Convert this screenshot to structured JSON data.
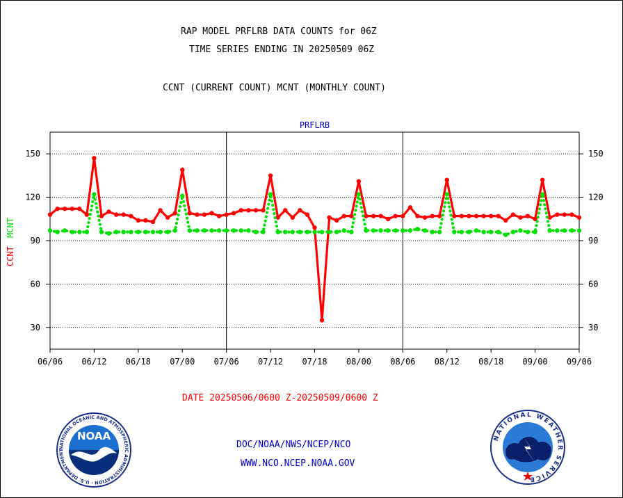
{
  "header": {
    "title_line1": "RAP MODEL PRFLRB DATA COUNTS for 06Z",
    "title_line2": "TIME SERIES ENDING IN 20250509 06Z",
    "subtitle": "CCNT (CURRENT COUNT) MCNT (MONTHLY COUNT)"
  },
  "footer": {
    "date_range": "DATE 20250506/0600 Z-20250509/0600 Z",
    "org": "DOC/NOAA/NWS/NCEP/NCO",
    "url": "WWW.NCO.NCEP.NOAA.GOV",
    "noaa_logo_text": "NOAA",
    "noaa_ring_text": "NATIONAL OCEANIC AND ATMOSPHERIC ADMINISTRATION · U.S. DEPARTMENT OF COMMERCE",
    "nws_ring_text": "NATIONAL WEATHER SERVICE"
  },
  "colors": {
    "ccnt": "#ff0000",
    "mcnt": "#00e000",
    "title_blue": "#0000cc"
  },
  "chart_data": {
    "type": "line",
    "title": "PRFLRB",
    "ylabel_ccnt": "CCNT",
    "ylabel_mcnt": "MCNT",
    "ylim": [
      15,
      165
    ],
    "yticks": [
      30,
      60,
      90,
      120,
      150
    ],
    "xticks": [
      "06/06",
      "06/12",
      "06/18",
      "07/00",
      "07/06",
      "07/12",
      "07/18",
      "08/00",
      "08/06",
      "08/12",
      "08/18",
      "09/00",
      "09/06"
    ],
    "x_index_range": [
      0,
      72
    ],
    "grid": true,
    "series": [
      {
        "name": "CCNT",
        "style": "solid",
        "x": [
          0,
          1,
          2,
          3,
          4,
          5,
          6,
          7,
          8,
          9,
          10,
          11,
          12,
          13,
          14,
          15,
          16,
          17,
          18,
          19,
          20,
          21,
          22,
          23,
          24,
          25,
          26,
          27,
          28,
          29,
          30,
          31,
          32,
          33,
          34,
          35,
          36,
          37,
          38,
          39,
          40,
          41,
          42,
          43,
          44,
          45,
          46,
          47,
          48,
          49,
          50,
          51,
          52,
          53,
          54,
          55,
          56,
          57,
          58,
          59,
          60,
          61,
          62,
          63,
          64,
          65,
          66,
          67,
          68,
          69,
          70,
          71,
          72
        ],
        "values": [
          108,
          112,
          112,
          112,
          112,
          108,
          147,
          107,
          110,
          108,
          108,
          107,
          104,
          104,
          103,
          111,
          106,
          109,
          139,
          109,
          108,
          108,
          109,
          107,
          108,
          109,
          111,
          111,
          111,
          111,
          135,
          106,
          111,
          106,
          111,
          108,
          99,
          35,
          106,
          104,
          107,
          107,
          131,
          107,
          107,
          107,
          105,
          107,
          107,
          113,
          107,
          106,
          107,
          107,
          132,
          107,
          107,
          107,
          107,
          107,
          107,
          107,
          104,
          108,
          106,
          107,
          105,
          132,
          106,
          108,
          108,
          108,
          106
        ]
      },
      {
        "name": "MCNT",
        "style": "dotted",
        "x": [
          0,
          1,
          2,
          3,
          4,
          5,
          6,
          7,
          8,
          9,
          10,
          11,
          12,
          13,
          14,
          15,
          16,
          17,
          18,
          19,
          20,
          21,
          22,
          23,
          24,
          25,
          26,
          27,
          28,
          29,
          30,
          31,
          32,
          33,
          34,
          35,
          36,
          37,
          38,
          39,
          40,
          41,
          42,
          43,
          44,
          45,
          46,
          47,
          48,
          49,
          50,
          51,
          52,
          53,
          54,
          55,
          56,
          57,
          58,
          59,
          60,
          61,
          62,
          63,
          64,
          65,
          66,
          67,
          68,
          69,
          70,
          71,
          72
        ],
        "values": [
          97,
          96,
          97,
          96,
          96,
          96,
          122,
          96,
          95,
          96,
          96,
          96,
          96,
          96,
          96,
          96,
          96,
          97,
          121,
          97,
          97,
          97,
          97,
          97,
          97,
          97,
          97,
          97,
          96,
          96,
          122,
          96,
          96,
          96,
          96,
          96,
          96,
          96,
          96,
          96,
          97,
          96,
          122,
          97,
          97,
          97,
          97,
          97,
          97,
          97,
          98,
          97,
          96,
          96,
          122,
          96,
          96,
          96,
          97,
          96,
          96,
          96,
          94,
          96,
          97,
          96,
          96,
          122,
          97,
          97,
          97,
          97,
          97
        ]
      }
    ]
  }
}
